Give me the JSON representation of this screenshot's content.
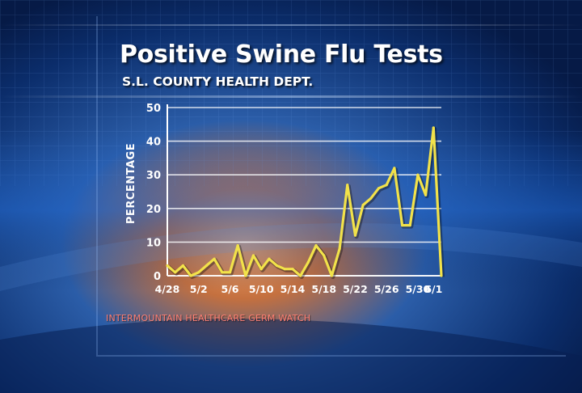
{
  "header": {
    "title": "Positive Swine Flu Tests",
    "subtitle": "S.L. COUNTY HEALTH DEPT."
  },
  "footer": {
    "source": "INTERMOUNTAIN HEALTHCARE GERM WATCH"
  },
  "colors": {
    "line": "#f2e24a",
    "grid": "#ffffff",
    "source_text": "#ff7f72",
    "background": "#0a2a63"
  },
  "chart_data": {
    "type": "line",
    "title": "Positive Swine Flu Tests",
    "subtitle": "S.L. COUNTY HEALTH DEPT.",
    "xlabel": "",
    "ylabel": "PERCENTAGE",
    "ylim": [
      0,
      50
    ],
    "yticks": [
      0,
      10,
      20,
      30,
      40,
      50
    ],
    "xlim": [
      "4/28",
      "6/2"
    ],
    "xticks": [
      "4/28",
      "5/2",
      "5/6",
      "5/10",
      "5/14",
      "5/18",
      "5/22",
      "5/26",
      "5/30",
      "6/1"
    ],
    "grid": true,
    "legend": "none",
    "series": [
      {
        "x": [
          "4/28",
          "4/29",
          "4/30",
          "5/1",
          "5/2",
          "5/3",
          "5/4",
          "5/5",
          "5/6",
          "5/7",
          "5/8",
          "5/9",
          "5/10",
          "5/11",
          "5/12",
          "5/13",
          "5/14",
          "5/15",
          "5/16",
          "5/17",
          "5/18",
          "5/19",
          "5/20",
          "5/21",
          "5/22",
          "5/23",
          "5/24",
          "5/25",
          "5/26",
          "5/27",
          "5/28",
          "5/29",
          "5/30",
          "5/31",
          "6/1",
          "6/2"
        ],
        "values": [
          3,
          1,
          3,
          0,
          1,
          3,
          5,
          1,
          1,
          9,
          0,
          6,
          2,
          5,
          3,
          2,
          2,
          0,
          4,
          9,
          6,
          0,
          8,
          27,
          12,
          21,
          23,
          26,
          27,
          32,
          15,
          15,
          30,
          24,
          44,
          0
        ]
      }
    ]
  }
}
